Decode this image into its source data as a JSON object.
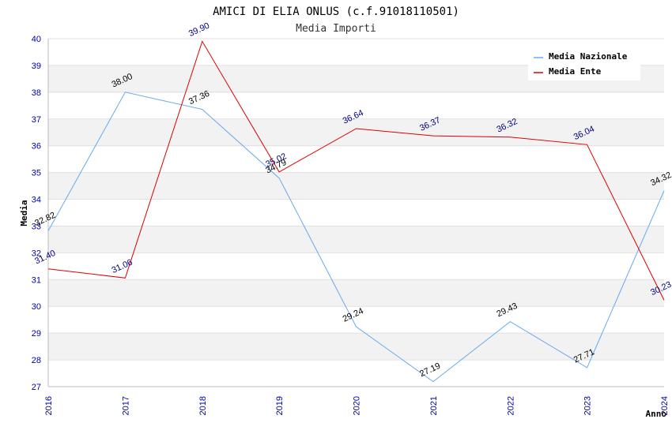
{
  "chart_data": {
    "type": "line",
    "title": "AMICI DI ELIA ONLUS (c.f.91018110501)",
    "subtitle": "Media Importi",
    "xlabel": "Anno",
    "ylabel": "Media",
    "categories": [
      "2016",
      "2017",
      "2018",
      "2019",
      "2020",
      "2021",
      "2022",
      "2023",
      "2024"
    ],
    "yticks": [
      "27",
      "28",
      "29",
      "30",
      "31",
      "32",
      "33",
      "34",
      "35",
      "36",
      "37",
      "38",
      "39",
      "40"
    ],
    "ylim": [
      27,
      40
    ],
    "grid": true,
    "legend_position": "top-right",
    "series": [
      {
        "name": "Media Nazionale",
        "color": "#66aaee",
        "label_color": "#000000",
        "values": [
          32.82,
          38.0,
          37.36,
          34.79,
          29.24,
          27.19,
          29.43,
          27.71,
          34.32
        ],
        "labels": [
          "32.82",
          "38.00",
          "37.36",
          "34.79",
          "29.24",
          "27.19",
          "29.43",
          "27.71",
          "34.32"
        ]
      },
      {
        "name": "Media Ente",
        "color": "#dd0000",
        "label_color": "#000080",
        "values": [
          31.4,
          31.06,
          39.9,
          35.02,
          36.64,
          36.37,
          36.32,
          36.04,
          30.23
        ],
        "labels": [
          "31.40",
          "31.06",
          "39.90",
          "35.02",
          "36.64",
          "36.37",
          "36.32",
          "36.04",
          "30.23"
        ]
      }
    ]
  }
}
